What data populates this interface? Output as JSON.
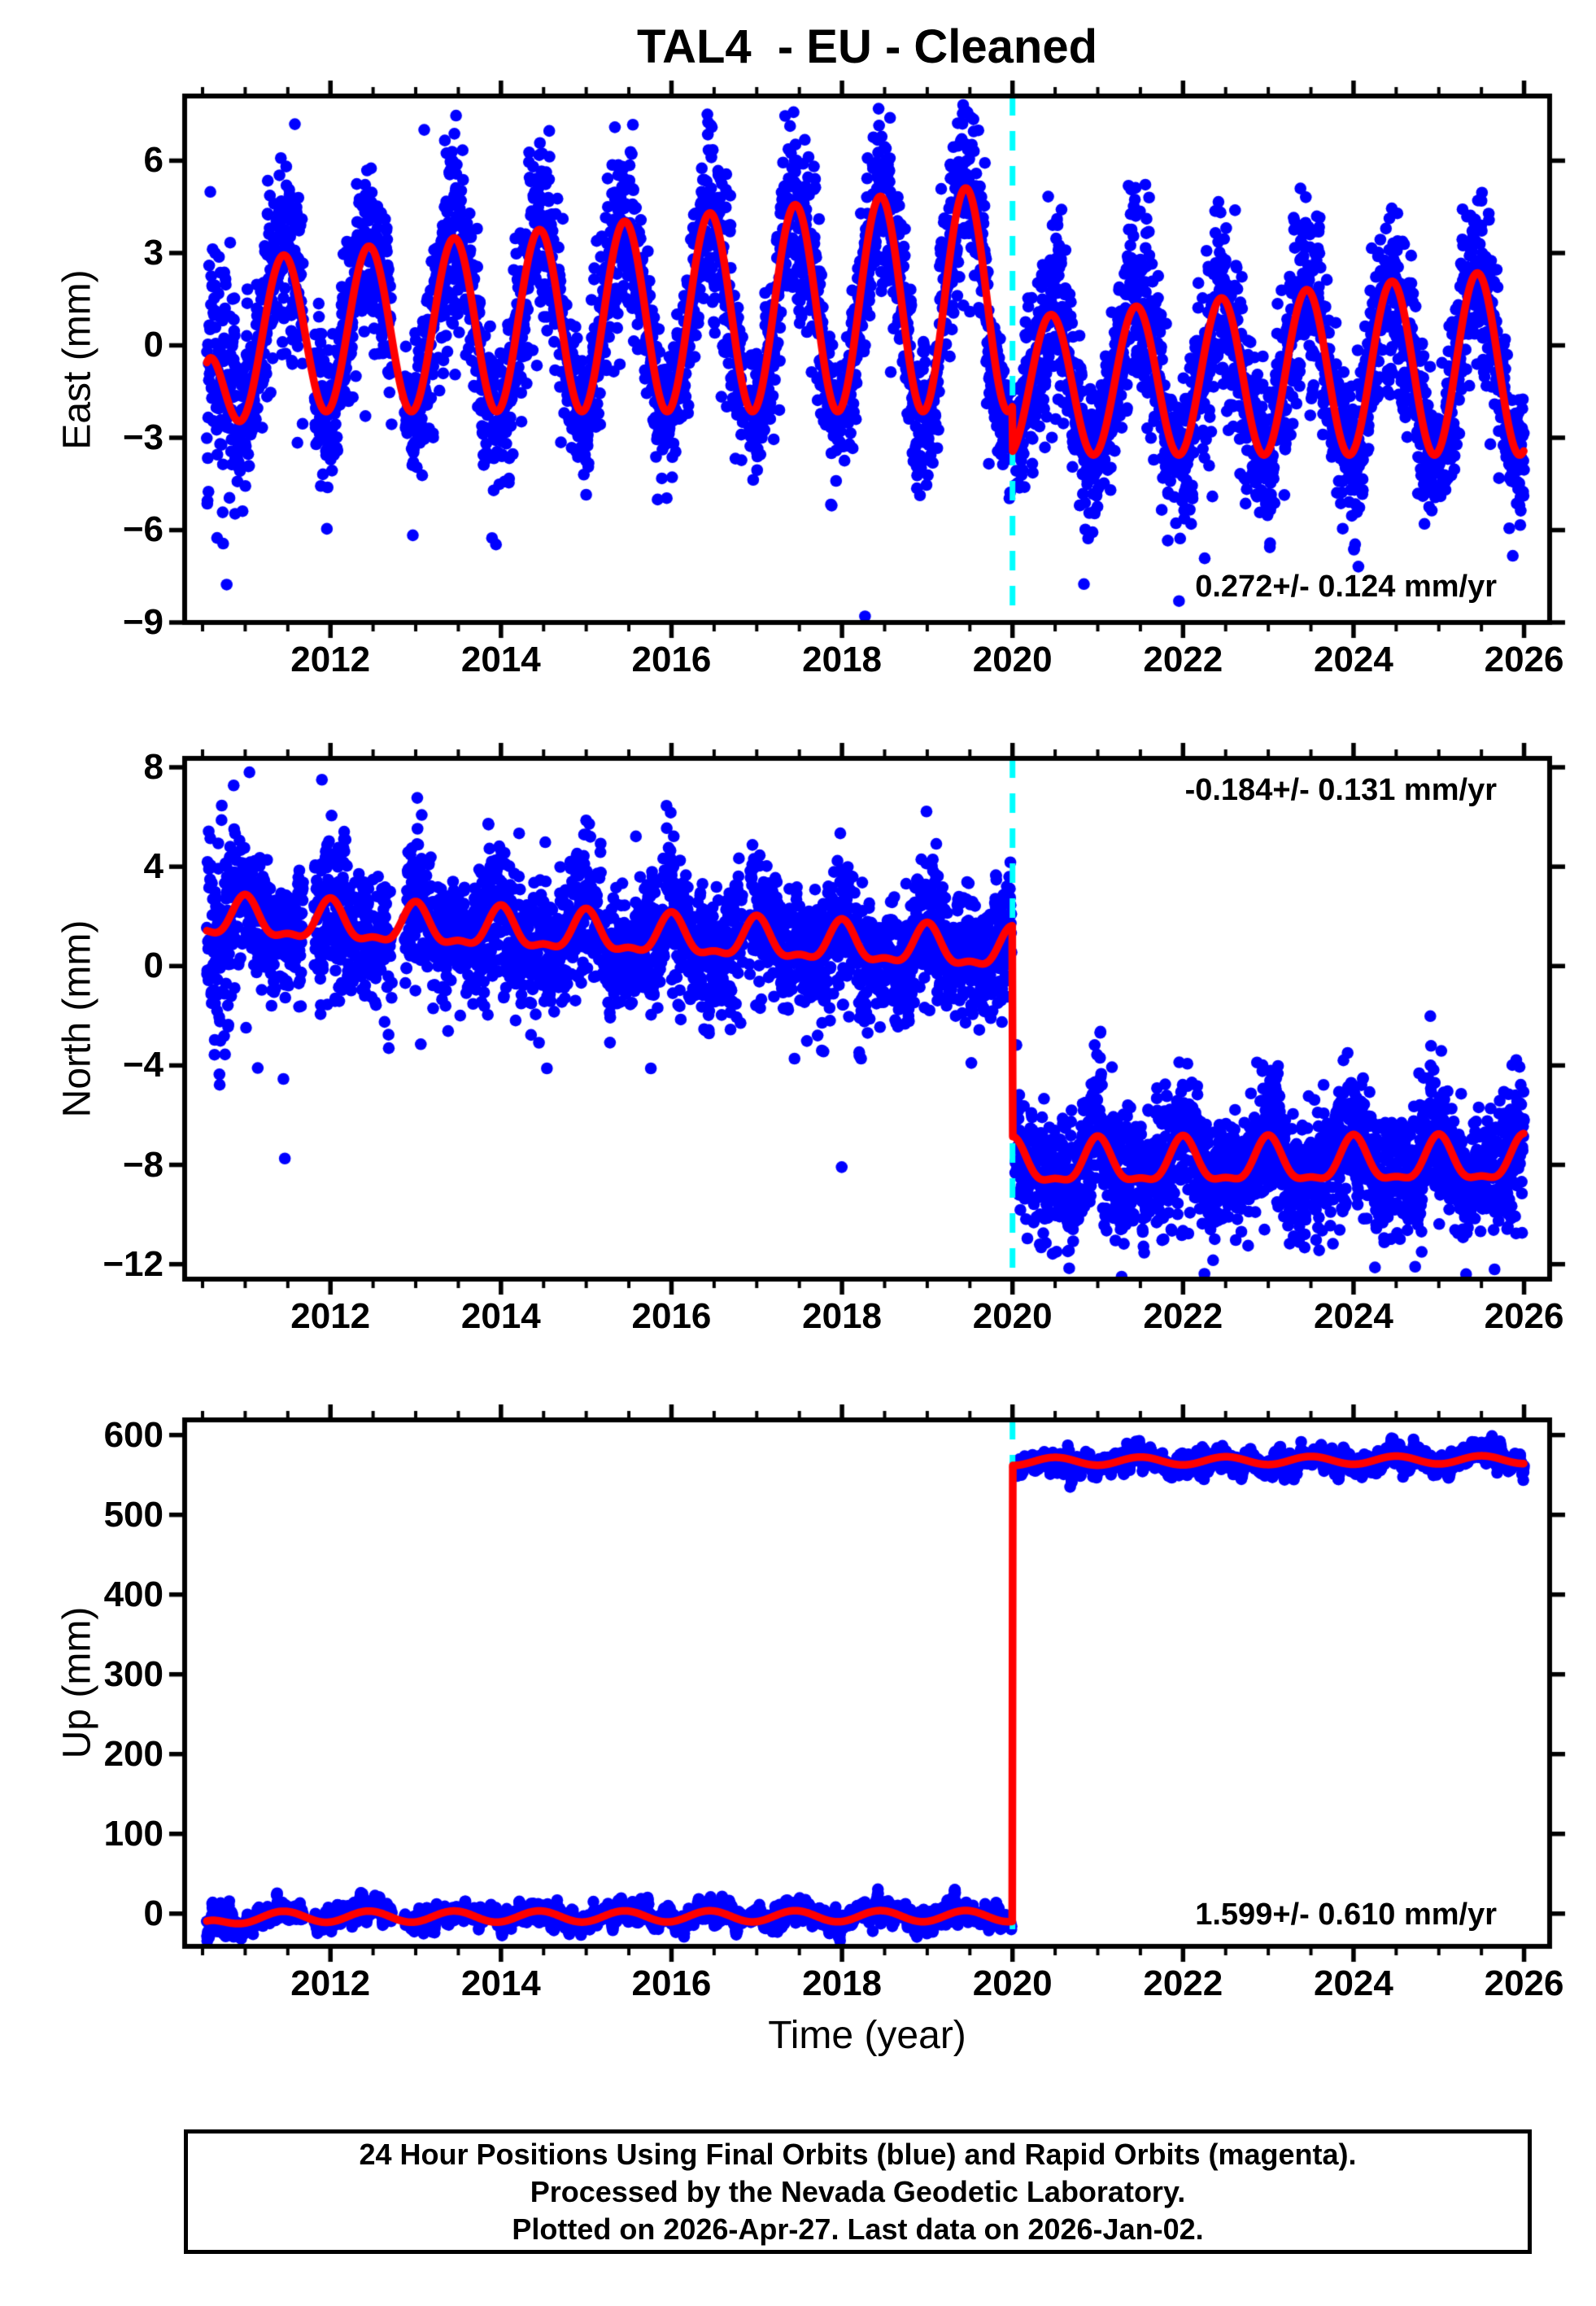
{
  "title": "TAL4  - EU - Cleaned",
  "xlabel": "Time (year)",
  "colors": {
    "data_points": "#0000ff",
    "model_line": "#ff0000",
    "event_line": "#00ffff",
    "frame": "#000000",
    "background": "#ffffff"
  },
  "footer": {
    "lines": [
      "24 Hour Positions Using Final Orbits (blue) and Rapid Orbits (magenta).",
      "Processed by the Nevada Geodetic Laboratory.",
      "Plotted on 2026-Apr-27. Last data on 2026-Jan-02."
    ]
  },
  "chart_data": {
    "type": "scatter",
    "x": {
      "label": "Time (year)",
      "lim": [
        2010.29,
        2026.3
      ],
      "major_ticks": [
        2012,
        2014,
        2016,
        2018,
        2020,
        2022,
        2024,
        2026
      ],
      "minor_tick_step": 0.5,
      "data_start": 2010.55,
      "data_end": 2026.0,
      "gaps": [
        [
          2011.68,
          2011.81
        ],
        [
          2012.72,
          2012.87
        ],
        [
          2016.84,
          2016.91
        ],
        [
          2019.99,
          2020.03
        ]
      ]
    },
    "event_line": {
      "x": 2020.0,
      "color": "#00ffff",
      "style": "dashed"
    },
    "step_time": 2020.0,
    "points_per_year": 365,
    "panels": [
      {
        "name": "East",
        "ylabel": "East (mm)",
        "ylim": [
          -9.0,
          8.1
        ],
        "yticks": [
          6,
          3,
          0,
          -3,
          -6,
          -9
        ],
        "annotation": {
          "text": "0.272+/- 0.124 mm/yr",
          "position": "bottom-right"
        },
        "rate_mm_per_yr": 0.272,
        "rate_sigma": 0.124,
        "model": {
          "pre": {
            "tref": 2011.45,
            "base": 0.4,
            "slope": 0.135,
            "amp": 2.55,
            "amp_slope": 0.135,
            "peak_phase": 0.45,
            "semi": 0,
            "semi_phase": 0
          },
          "post": {
            "tref": 2020.45,
            "base": -1.28,
            "slope": 0.135,
            "amp": 2.28,
            "amp_slope": 0.135,
            "peak_phase": 0.45,
            "semi": 0,
            "semi_phase": 0
          },
          "start_decay": {
            "amp": -2.8,
            "tau": 0.18
          }
        },
        "noise": {
          "sigma": 1.05,
          "ar": 0.4,
          "winter_boost": 0.55,
          "neg_tail_rate": 0.06,
          "neg_tail_mean": 1.6,
          "pos_tail_rate": 0.015,
          "pos_tail_mean": 1.0
        },
        "outliers": [
          [
            2018.27,
            -8.8
          ],
          [
            2013.1,
            7.0
          ]
        ],
        "seed": 11
      },
      {
        "name": "North",
        "ylabel": "North (mm)",
        "ylim": [
          -12.6,
          8.36
        ],
        "yticks": [
          8,
          4,
          0,
          -4,
          -8,
          -12
        ],
        "annotation": {
          "text": "-0.184+/- 0.131 mm/yr",
          "position": "top-right"
        },
        "rate_mm_per_yr": -0.184,
        "rate_sigma": 0.131,
        "model": {
          "pre": {
            "tref": 2010.5,
            "base": 1.9,
            "slope": -0.14,
            "amp": 0.75,
            "amp_slope": 0,
            "peak_phase": 0.0,
            "semi": 0.3,
            "semi_phase": 0.0
          },
          "post": {
            "tref": 2020.5,
            "base": -8.0,
            "slope": 0.02,
            "amp": 0.85,
            "amp_slope": 0,
            "peak_phase": 0.0,
            "semi": 0.3,
            "semi_phase": 0.0
          },
          "start_decay": {
            "amp": 0,
            "tau": 1
          }
        },
        "noise": {
          "sigma": 1.1,
          "ar": 0.4,
          "winter_boost": 0.3,
          "neg_tail_rate": 0.05,
          "neg_tail_mean": 1.5,
          "pos_tail_rate": 0.02,
          "pos_tail_mean": 1.2
        },
        "outliers": [
          [
            2021.28,
            -12.5
          ],
          [
            2025.32,
            -12.4
          ],
          [
            2011.05,
            7.8
          ],
          [
            2011.9,
            7.5
          ]
        ],
        "seed": 22
      },
      {
        "name": "Up",
        "ylabel": "Up (mm)",
        "ylim": [
          -41,
          619
        ],
        "yticks": [
          600,
          500,
          400,
          300,
          200,
          100,
          0
        ],
        "annotation": {
          "text": "1.599+/- 0.610 mm/yr",
          "position": "bottom-right"
        },
        "rate_mm_per_yr": 1.599,
        "rate_sigma": 0.61,
        "model": {
          "pre": {
            "tref": 2010.5,
            "base": -4.0,
            "slope": 0.1,
            "amp": 7.0,
            "amp_slope": 0,
            "peak_phase": 0.45,
            "semi": 0,
            "semi_phase": 0
          },
          "post": {
            "tref": 2020.5,
            "base": 567,
            "slope": 0.4,
            "amp": 5.0,
            "amp_slope": 0,
            "peak_phase": 0.5,
            "semi": 0,
            "semi_phase": 0
          },
          "start_decay": {
            "amp": -11,
            "tau": 0.2
          }
        },
        "noise": {
          "sigma": 7.5,
          "ar": 0.85,
          "winter_boost": 0.15,
          "neg_tail_rate": 0.01,
          "neg_tail_mean": 8,
          "pos_tail_rate": 0.01,
          "pos_tail_mean": 6
        },
        "outliers": [],
        "seed": 33
      }
    ]
  }
}
